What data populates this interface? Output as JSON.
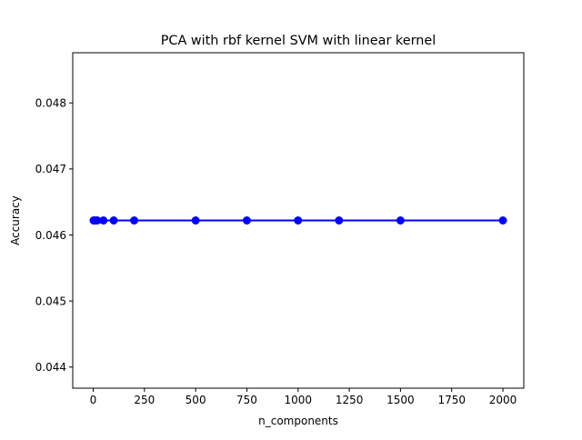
{
  "chart_data": {
    "type": "line",
    "title": "PCA with rbf kernel SVM with linear kernel",
    "xlabel": "n_components",
    "ylabel": "Accuracy",
    "x": [
      2,
      5,
      10,
      20,
      50,
      100,
      200,
      500,
      750,
      1000,
      1200,
      1500,
      2000
    ],
    "series": [
      {
        "values": [
          0.04622,
          0.04622,
          0.04622,
          0.04622,
          0.04622,
          0.04622,
          0.04622,
          0.04622,
          0.04622,
          0.04622,
          0.04622,
          0.04622,
          0.04622
        ],
        "color": "#0000ff",
        "marker": "circle"
      }
    ],
    "xlim": [
      -99.9,
      2101.9
    ],
    "ylim": [
      0.04368,
      0.04876
    ],
    "xticks": [
      0,
      250,
      500,
      750,
      1000,
      1250,
      1500,
      1750,
      2000
    ],
    "yticks": [
      0.044,
      0.045,
      0.046,
      0.047,
      0.048
    ],
    "ytick_labels": [
      "0.044",
      "0.045",
      "0.046",
      "0.047",
      "0.048"
    ],
    "grid": false,
    "legend": "none"
  }
}
